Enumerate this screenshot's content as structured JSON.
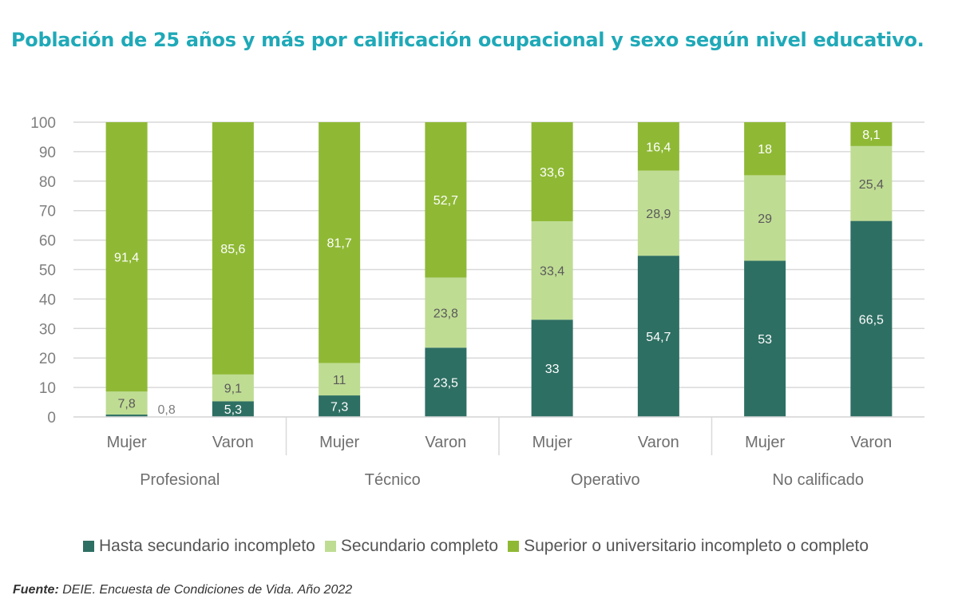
{
  "chart_data": {
    "type": "bar",
    "stacked": true,
    "title": "Población de 25 años y más por calificación ocupacional y sexo según nivel educativo.",
    "xlabel": "",
    "ylabel": "",
    "ylim": [
      0,
      100
    ],
    "yticks": [
      0,
      10,
      20,
      30,
      40,
      50,
      60,
      70,
      80,
      90,
      100
    ],
    "grid": true,
    "legend_position": "bottom",
    "groups": [
      "Profesional",
      "Técnico",
      "Operativo",
      "No calificado"
    ],
    "categories": [
      "Mujer",
      "Varon",
      "Mujer",
      "Varon",
      "Mujer",
      "Varon",
      "Mujer",
      "Varon"
    ],
    "series": [
      {
        "name": "Hasta secundario incompleto",
        "color": "#2e6f63",
        "label_color": "#ffffff",
        "values": [
          0.8,
          5.3,
          7.3,
          23.5,
          33,
          54.7,
          53,
          66.5
        ],
        "labels": [
          "0,8",
          "5,3",
          "7,3",
          "23,5",
          "33",
          "54,7",
          "53",
          "66,5"
        ]
      },
      {
        "name": "Secundario completo",
        "color": "#bfdc93",
        "label_color": "#5a5a5a",
        "values": [
          7.8,
          9.1,
          11,
          23.8,
          33.4,
          28.9,
          29,
          25.4
        ],
        "labels": [
          "7,8",
          "9,1",
          "11",
          "23,8",
          "33,4",
          "28,9",
          "29",
          "25,4"
        ]
      },
      {
        "name": "Superior o universitario incompleto o completo",
        "color": "#8fb935",
        "label_color": "#ffffff",
        "values": [
          91.4,
          85.6,
          81.7,
          52.7,
          33.6,
          16.4,
          18,
          8.1
        ],
        "labels": [
          "91,4",
          "85,6",
          "81,7",
          "52,7",
          "33,6",
          "16,4",
          "18",
          "8,1"
        ]
      }
    ]
  },
  "source": {
    "label": "Fuente:",
    "text": " DEIE. Encuesta de Condiciones de Vida. Año 2022"
  }
}
